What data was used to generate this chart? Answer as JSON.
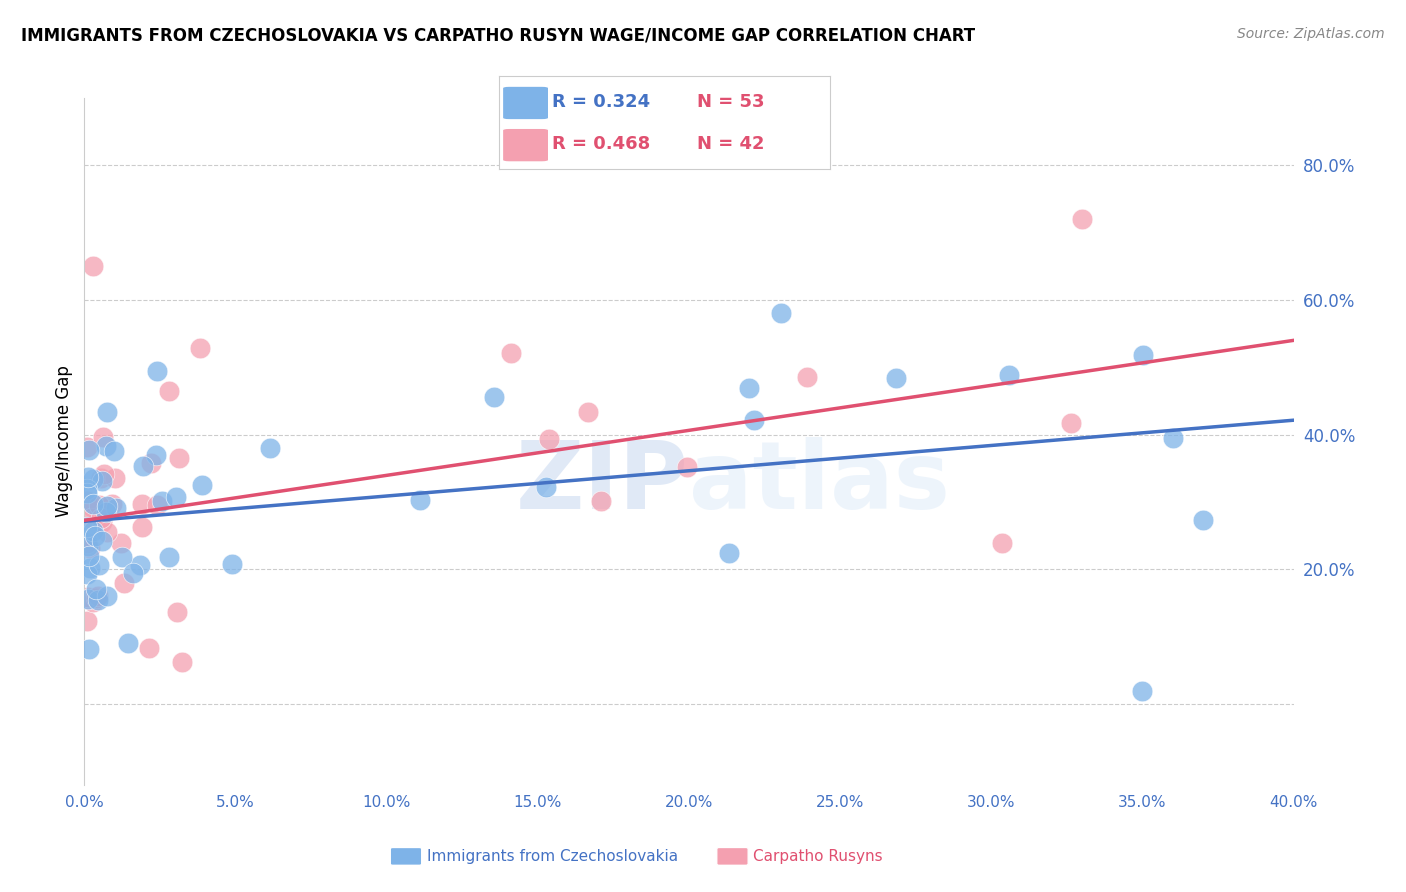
{
  "title": "IMMIGRANTS FROM CZECHOSLOVAKIA VS CARPATHO RUSYN WAGE/INCOME GAP CORRELATION CHART",
  "source": "Source: ZipAtlas.com",
  "ylabel": "Wage/Income Gap",
  "xlim": [
    0.0,
    0.4
  ],
  "ylim": [
    -0.12,
    0.9
  ],
  "yticks": [
    0.2,
    0.4,
    0.6,
    0.8
  ],
  "xticks": [
    0.0,
    0.05,
    0.1,
    0.15,
    0.2,
    0.25,
    0.3,
    0.35,
    0.4
  ],
  "blue_R": 0.324,
  "blue_N": 53,
  "pink_R": 0.468,
  "pink_N": 42,
  "blue_color": "#7EB3E8",
  "pink_color": "#F4A0B0",
  "blue_line_color": "#4472C4",
  "pink_line_color": "#E05070",
  "legend_blue_label": "Immigrants from Czechoslovakia",
  "legend_pink_label": "Carpatho Rusyns",
  "watermark_zip": "ZIP",
  "watermark_atlas": "atlas",
  "background_color": "#FFFFFF",
  "grid_color": "#CCCCCC"
}
